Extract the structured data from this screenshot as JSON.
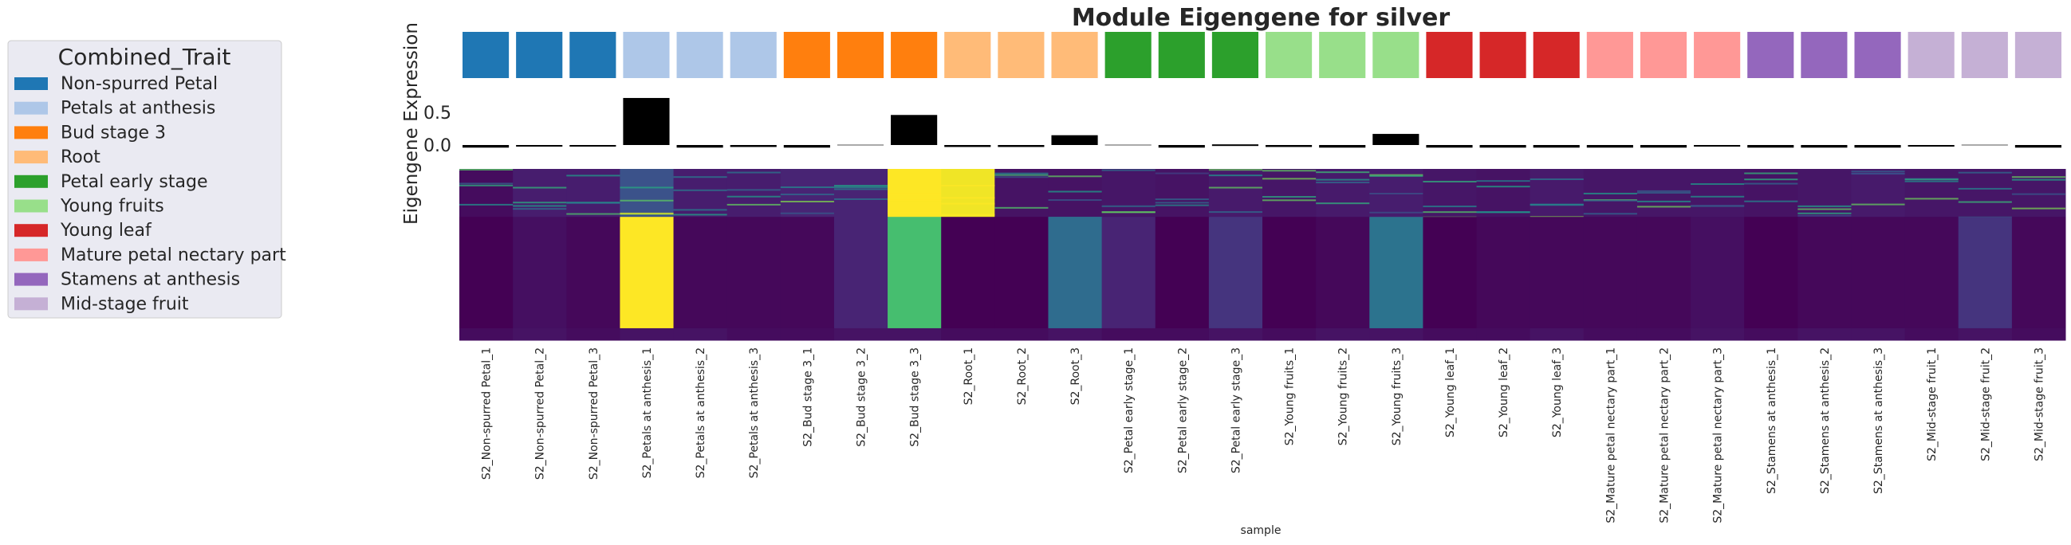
{
  "chart_data": {
    "type": "heatmap",
    "title": "Module Eigengene for silver",
    "xlabel": "sample",
    "bar_ylabel": "Eigengene Expression",
    "bar_yticks": [
      {
        "value": 0.5,
        "label": "0.5"
      },
      {
        "value": 0.0,
        "label": "0.0"
      }
    ],
    "bar_ylim": [
      -0.08,
      0.82
    ],
    "legend": {
      "title": "Combined_Trait",
      "position": "left",
      "items": [
        {
          "label": "Non-spurred Petal",
          "color": "#1f77b4"
        },
        {
          "label": "Petals at anthesis",
          "color": "#aec7e8"
        },
        {
          "label": "Bud stage 3",
          "color": "#ff7f0e"
        },
        {
          "label": "Root",
          "color": "#ffbb78"
        },
        {
          "label": "Petal early stage",
          "color": "#2ca02c"
        },
        {
          "label": "Young fruits",
          "color": "#98df8a"
        },
        {
          "label": "Young leaf",
          "color": "#d62728"
        },
        {
          "label": "Mature petal nectary part",
          "color": "#ff9896"
        },
        {
          "label": "Stamens at anthesis",
          "color": "#9467bd"
        },
        {
          "label": "Mid-stage fruit",
          "color": "#c5b0d5"
        }
      ]
    },
    "samples": [
      {
        "name": "S2_Non-spurred Petal_1",
        "group": 0,
        "eigengene": -0.04
      },
      {
        "name": "S2_Non-spurred Petal_2",
        "group": 0,
        "eigengene": -0.02
      },
      {
        "name": "S2_Non-spurred Petal_3",
        "group": 0,
        "eigengene": -0.02
      },
      {
        "name": "S2_Petals at anthesis_1",
        "group": 1,
        "eigengene": 0.72
      },
      {
        "name": "S2_Petals at anthesis_2",
        "group": 1,
        "eigengene": -0.04
      },
      {
        "name": "S2_Petals at anthesis_3",
        "group": 1,
        "eigengene": -0.03
      },
      {
        "name": "S2_Bud stage 3_1",
        "group": 2,
        "eigengene": -0.04
      },
      {
        "name": "S2_Bud stage 3_2",
        "group": 2,
        "eigengene": 0.0
      },
      {
        "name": "S2_Bud stage 3_3",
        "group": 2,
        "eigengene": 0.46
      },
      {
        "name": "S2_Root_1",
        "group": 3,
        "eigengene": -0.03
      },
      {
        "name": "S2_Root_2",
        "group": 3,
        "eigengene": -0.03
      },
      {
        "name": "S2_Root_3",
        "group": 3,
        "eigengene": 0.15
      },
      {
        "name": "S2_Petal early stage_1",
        "group": 4,
        "eigengene": 0.0
      },
      {
        "name": "S2_Petal early stage_2",
        "group": 4,
        "eigengene": -0.04
      },
      {
        "name": "S2_Petal early stage_3",
        "group": 4,
        "eigengene": 0.01
      },
      {
        "name": "S2_Young fruits_1",
        "group": 5,
        "eigengene": -0.03
      },
      {
        "name": "S2_Young fruits_2",
        "group": 5,
        "eigengene": -0.04
      },
      {
        "name": "S2_Young fruits_3",
        "group": 5,
        "eigengene": 0.17
      },
      {
        "name": "S2_Young leaf_1",
        "group": 6,
        "eigengene": -0.04
      },
      {
        "name": "S2_Young leaf_2",
        "group": 6,
        "eigengene": -0.04
      },
      {
        "name": "S2_Young leaf_3",
        "group": 6,
        "eigengene": -0.04
      },
      {
        "name": "S2_Mature petal nectary part_1",
        "group": 7,
        "eigengene": -0.04
      },
      {
        "name": "S2_Mature petal nectary part_2",
        "group": 7,
        "eigengene": -0.04
      },
      {
        "name": "S2_Mature petal nectary part_3",
        "group": 7,
        "eigengene": -0.02
      },
      {
        "name": "S2_Stamens at anthesis_1",
        "group": 8,
        "eigengene": -0.04
      },
      {
        "name": "S2_Stamens at anthesis_2",
        "group": 8,
        "eigengene": -0.04
      },
      {
        "name": "S2_Stamens at anthesis_3",
        "group": 8,
        "eigengene": -0.04
      },
      {
        "name": "S2_Mid-stage fruit_1",
        "group": 9,
        "eigengene": -0.02
      },
      {
        "name": "S2_Mid-stage fruit_2",
        "group": 9,
        "eigengene": 0.0
      },
      {
        "name": "S2_Mid-stage fruit_3",
        "group": 9,
        "eigengene": -0.04
      }
    ],
    "heatmap": {
      "colormap": "viridis",
      "value_range": [
        0,
        1
      ],
      "gene_blocks": [
        {
          "name": "top_block",
          "gene_share": 0.28,
          "values": [
            0.03,
            0.08,
            0.08,
            0.25,
            0.08,
            0.08,
            0.1,
            0.1,
            1.0,
            0.98,
            0.05,
            0.05,
            0.06,
            0.05,
            0.07,
            0.06,
            0.07,
            0.08,
            0.06,
            0.05,
            0.07,
            0.06,
            0.06,
            0.06,
            0.05,
            0.06,
            0.07,
            0.06,
            0.06,
            0.06
          ]
        },
        {
          "name": "main_block",
          "gene_share": 0.65,
          "values": [
            0.0,
            0.04,
            0.02,
            1.0,
            0.02,
            0.02,
            0.02,
            0.1,
            0.7,
            0.0,
            0.0,
            0.35,
            0.1,
            0.0,
            0.15,
            0.0,
            0.02,
            0.38,
            0.0,
            0.02,
            0.02,
            0.02,
            0.02,
            0.04,
            0.0,
            0.02,
            0.02,
            0.02,
            0.15,
            0.02
          ]
        },
        {
          "name": "bottom_block",
          "gene_share": 0.07,
          "values": [
            0.03,
            0.05,
            0.03,
            0.05,
            0.05,
            0.03,
            0.03,
            0.05,
            0.05,
            0.03,
            0.03,
            0.05,
            0.03,
            0.03,
            0.05,
            0.03,
            0.05,
            0.05,
            0.03,
            0.03,
            0.05,
            0.03,
            0.03,
            0.05,
            0.03,
            0.05,
            0.05,
            0.03,
            0.05,
            0.03
          ]
        }
      ]
    }
  }
}
